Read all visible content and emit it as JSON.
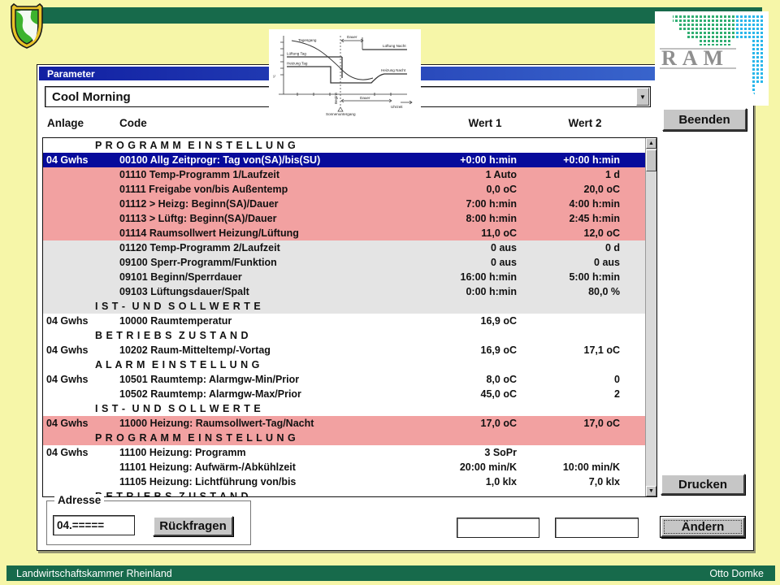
{
  "slide": {
    "footer": {
      "left": "Landwirtschaftskammer Rheinland",
      "right": "Otto Domke"
    },
    "colors": {
      "background": "#f6f6a8",
      "banner_green": "#176a4b",
      "selected_row": "#070b9b",
      "row_pink": "#f2a1a1",
      "row_gray": "#e4e4e4",
      "titlebar_left": "#111fa2",
      "titlebar_right": "#3f6fd2"
    }
  },
  "logos": {
    "ram": "RAM"
  },
  "icons": {
    "chevron_down": "▼",
    "arrow_up": "▲",
    "arrow_down": "▼"
  },
  "inset": {
    "labels": [
      "Tagesgang",
      "Lüftung Tag",
      "Heizung Tag",
      "Lüftung Nacht",
      "Heizung Nacht",
      "Dauer",
      "Dauer",
      "Beginn",
      "Sonnenuntergang",
      "Uhrzeit"
    ]
  },
  "dialog": {
    "title": "Parameter",
    "combo": {
      "value": "Cool Morning"
    },
    "columns": {
      "anlage": "Anlage",
      "code": "Code",
      "wert1": "Wert 1",
      "wert2": "Wert 2"
    },
    "buttons": {
      "beenden": "Beenden",
      "drucken": "Drucken",
      "aendern": "Ändern",
      "rueckfragen": "Rückfragen"
    },
    "adresse": {
      "label": "Adresse",
      "value": "04.====="
    },
    "inputs": {
      "field1": "",
      "field2": ""
    },
    "list": {
      "rows": [
        {
          "type": "section",
          "bg": "white",
          "text": "P R O G R A M M  E I N S T E L L U N G"
        },
        {
          "type": "data",
          "bg": "selected",
          "anlage": "04 Gwhs",
          "code": "00100 Allg Zeitprogr: Tag von(SA)/bis(SU)",
          "wert1": "+0:00 h:min",
          "wert2": "+0:00 h:min"
        },
        {
          "type": "data",
          "bg": "pink",
          "anlage": "",
          "code": "01110 Temp-Programm 1/Laufzeit",
          "wert1": "1 Auto",
          "wert2": "1 d"
        },
        {
          "type": "data",
          "bg": "pink",
          "anlage": "",
          "code": "01111 Freigabe von/bis Außentemp",
          "wert1": "0,0 oC",
          "wert2": "20,0 oC"
        },
        {
          "type": "data",
          "bg": "pink",
          "anlage": "",
          "code": "01112 > Heizg: Beginn(SA)/Dauer",
          "wert1": "7:00 h:min",
          "wert2": "4:00 h:min"
        },
        {
          "type": "data",
          "bg": "pink",
          "anlage": "",
          "code": "01113 > Lüftg: Beginn(SA)/Dauer",
          "wert1": "8:00 h:min",
          "wert2": "2:45 h:min"
        },
        {
          "type": "data",
          "bg": "pink",
          "anlage": "",
          "code": "01114 Raumsollwert Heizung/Lüftung",
          "wert1": "11,0 oC",
          "wert2": "12,0 oC"
        },
        {
          "type": "data",
          "bg": "gray",
          "anlage": "",
          "code": "01120 Temp-Programm 2/Laufzeit",
          "wert1": "0 aus",
          "wert2": "0 d"
        },
        {
          "type": "data",
          "bg": "gray",
          "anlage": "",
          "code": "09100 Sperr-Programm/Funktion",
          "wert1": "0 aus",
          "wert2": "0 aus"
        },
        {
          "type": "data",
          "bg": "gray",
          "anlage": "",
          "code": "09101 Beginn/Sperrdauer",
          "wert1": "16:00 h:min",
          "wert2": "5:00 h:min"
        },
        {
          "type": "data",
          "bg": "gray",
          "anlage": "",
          "code": "09103 Lüftungsdauer/Spalt",
          "wert1": "0:00 h:min",
          "wert2": "80,0 %"
        },
        {
          "type": "section",
          "bg": "gray",
          "text": "I S T -  U N D  S O L L W E R T E"
        },
        {
          "type": "data",
          "bg": "white",
          "anlage": "04 Gwhs",
          "code": "10000 Raumtemperatur",
          "wert1": "16,9 oC",
          "wert2": ""
        },
        {
          "type": "section",
          "bg": "white",
          "text": "B E T R I E B S  Z U S T A N D"
        },
        {
          "type": "data",
          "bg": "white",
          "anlage": "04 Gwhs",
          "code": "10202 Raum-Mitteltemp/-Vortag",
          "wert1": "16,9 oC",
          "wert2": "17,1 oC"
        },
        {
          "type": "section",
          "bg": "white",
          "text": "A L A R M  E I N S T E L L U N G"
        },
        {
          "type": "data",
          "bg": "white",
          "anlage": "04 Gwhs",
          "code": "10501 Raumtemp: Alarmgw-Min/Prior",
          "wert1": "8,0 oC",
          "wert2": "0"
        },
        {
          "type": "data",
          "bg": "white",
          "anlage": "",
          "code": "10502 Raumtemp: Alarmgw-Max/Prior",
          "wert1": "45,0 oC",
          "wert2": "2"
        },
        {
          "type": "section",
          "bg": "white",
          "text": "I S T -  U N D  S O L L W E R T E"
        },
        {
          "type": "data",
          "bg": "pink",
          "anlage": "04 Gwhs",
          "code": "11000 Heizung: Raumsollwert-Tag/Nacht",
          "wert1": "17,0 oC",
          "wert2": "17,0 oC"
        },
        {
          "type": "section",
          "bg": "pink",
          "text": "P R O G R A M M  E I N S T E L L U N G"
        },
        {
          "type": "data",
          "bg": "white",
          "anlage": "04 Gwhs",
          "code": "11100 Heizung: Programm",
          "wert1": "3 SoPr",
          "wert2": ""
        },
        {
          "type": "data",
          "bg": "white",
          "anlage": "",
          "code": "11101 Heizung: Aufwärm-/Abkühlzeit",
          "wert1": "20:00 min/K",
          "wert2": "10:00 min/K"
        },
        {
          "type": "data",
          "bg": "white",
          "anlage": "",
          "code": "11105 Heizung: Lichtführung von/bis",
          "wert1": "1,0 klx",
          "wert2": "7,0 klx"
        },
        {
          "type": "section",
          "bg": "white",
          "text": "B E T R I E B S  Z U S T A N D"
        }
      ]
    }
  }
}
